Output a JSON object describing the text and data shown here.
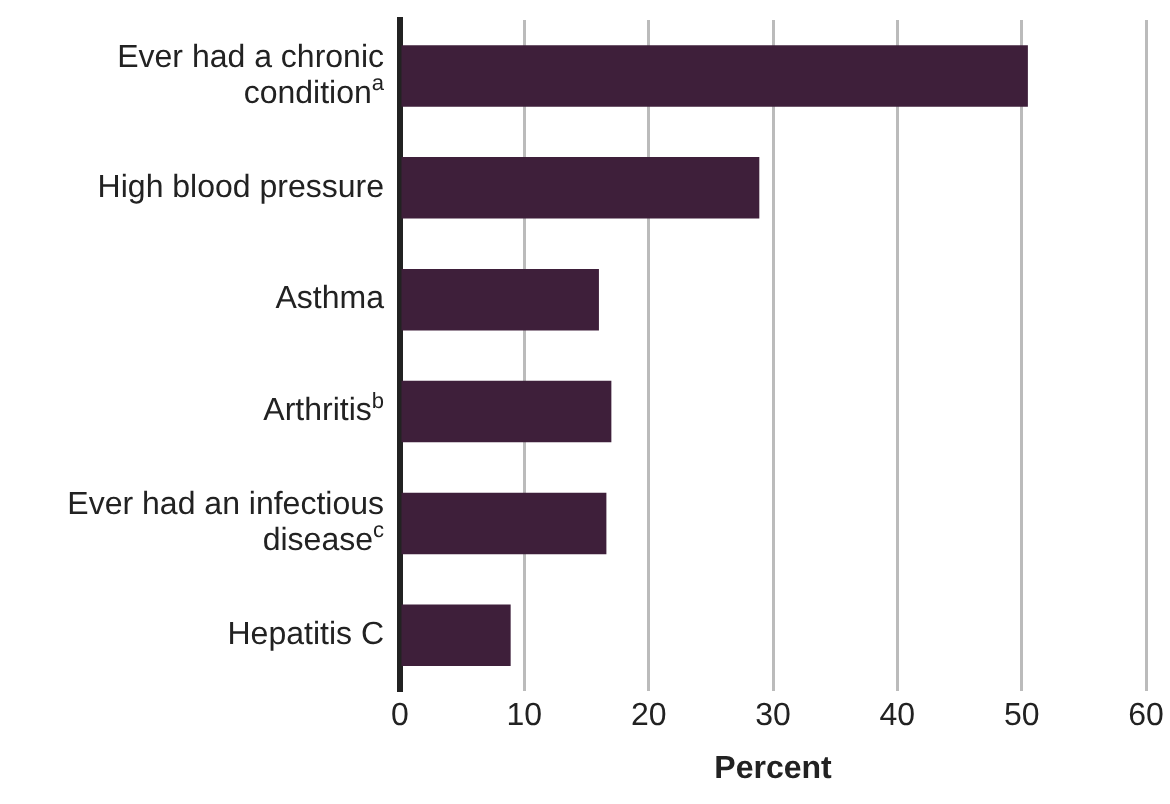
{
  "chart_data": {
    "type": "bar",
    "orientation": "horizontal",
    "xlabel": "Percent",
    "categories": [
      "Ever had a chronic condition$^{a}$",
      "High blood pressure",
      "Asthma",
      "Arthritis$^{b}$",
      "Ever had an infectious disease$^{c}$",
      "Hepatitis C"
    ],
    "values": [
      50.5,
      28.9,
      16.0,
      17.0,
      16.6,
      8.9
    ],
    "color": "#3e1f3a",
    "xlim": [
      0,
      60
    ],
    "xticks": [
      0,
      10,
      20,
      30,
      40,
      50,
      60
    ],
    "grid": "x",
    "legend": false
  }
}
